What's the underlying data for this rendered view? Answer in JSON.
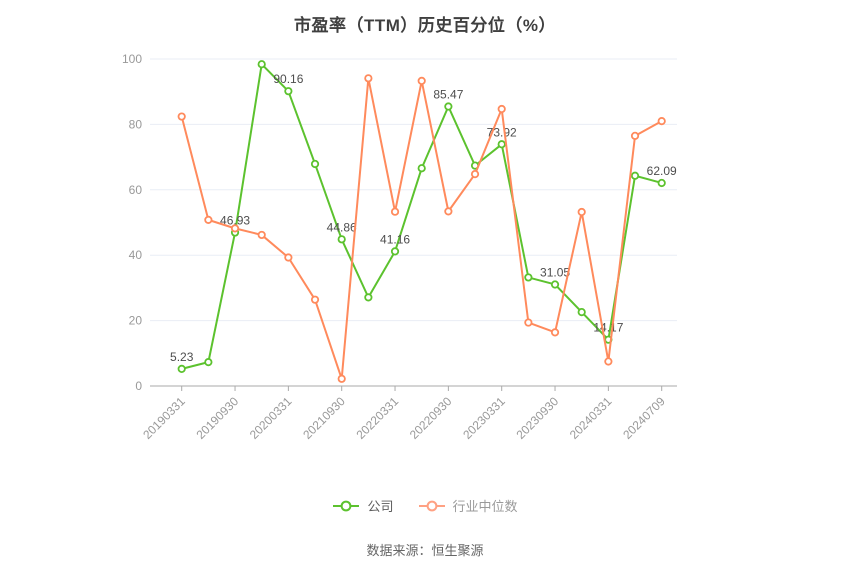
{
  "chart_data": {
    "type": "line",
    "title": "市盈率（TTM）历史百分位（%）",
    "xlabel": "",
    "ylabel": "",
    "ylim": [
      0,
      100
    ],
    "yticks": [
      0,
      20,
      40,
      60,
      80,
      100
    ],
    "grid": "horizontal",
    "legend_position": "bottom",
    "x_tick_labels": [
      "20190331",
      "20190930",
      "20200331",
      "20210930",
      "20220331",
      "20220930",
      "20230331",
      "20230930",
      "20240331",
      "20240709"
    ],
    "x_label_every": 2,
    "series": [
      {
        "name": "公司",
        "color": "#5cc22e",
        "values": [
          5.23,
          7.3,
          46.93,
          98.4,
          90.16,
          67.9,
          44.86,
          27.1,
          41.16,
          66.6,
          85.47,
          67.4,
          73.92,
          33.2,
          31.05,
          22.6,
          14.17,
          64.3,
          62.09
        ],
        "point_labels": [
          "5.23",
          null,
          "46.93",
          null,
          "90.16",
          null,
          "44.86",
          null,
          "41.16",
          null,
          "85.47",
          null,
          "73.92",
          null,
          "31.05",
          null,
          "14.17",
          null,
          "62.09"
        ]
      },
      {
        "name": "行业中位数",
        "color": "#ff8a5c",
        "values": [
          82.4,
          50.8,
          48.2,
          46.2,
          39.3,
          26.4,
          2.2,
          94.1,
          53.3,
          93.3,
          53.4,
          64.8,
          84.7,
          19.4,
          16.4,
          53.2,
          7.5,
          76.5,
          81.0
        ],
        "point_labels": null
      }
    ],
    "style": {
      "title_color": "#3f3f3f",
      "axis_text_color": "#999999",
      "axis_line_color": "#aaaaaa",
      "grid_color": "#e9edf5",
      "point_label_color": "#4d4d4d"
    }
  },
  "legend": {
    "items": [
      {
        "label": "公司",
        "icon_color": "#5cc22e"
      },
      {
        "label": "行业中位数",
        "icon_color": "#ffa183"
      }
    ]
  },
  "footer": {
    "source": "数据来源：恒生聚源"
  }
}
